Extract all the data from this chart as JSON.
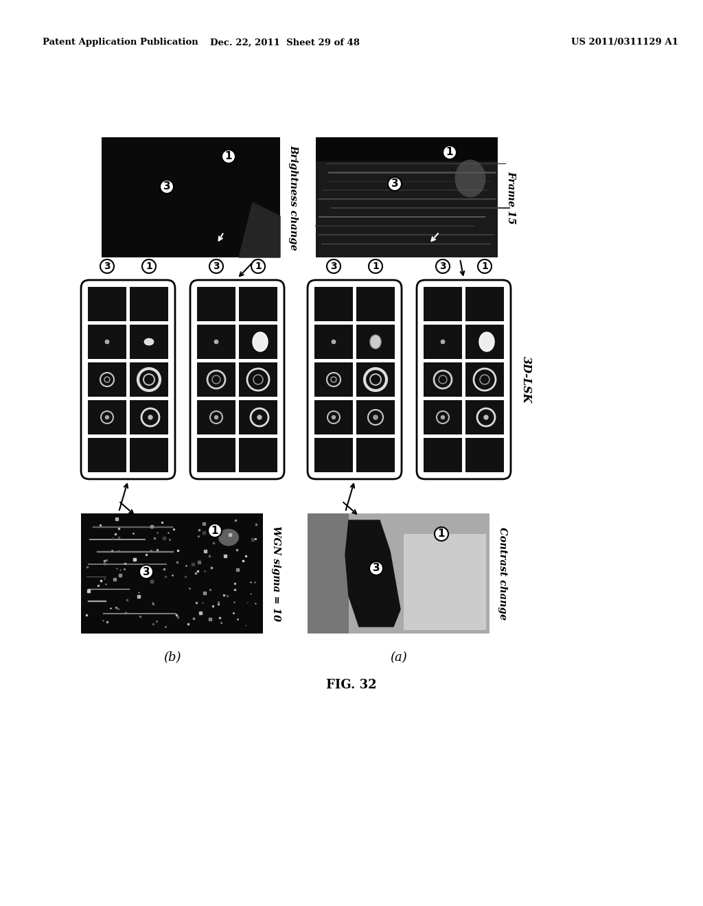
{
  "bg_color": "#ffffff",
  "header_left": "Patent Application Publication",
  "header_center": "Dec. 22, 2011  Sheet 29 of 48",
  "header_right": "US 2011/0311129 A1",
  "figure_label": "FIG. 32",
  "sub_a": "(a)",
  "sub_b": "(b)",
  "label_frame15": "Frame 15",
  "label_brightness": "Brightness change",
  "label_contrast": "Contrast change",
  "label_wgn": "WGN sigma = 10",
  "label_3dlsk": "3D-LSK"
}
